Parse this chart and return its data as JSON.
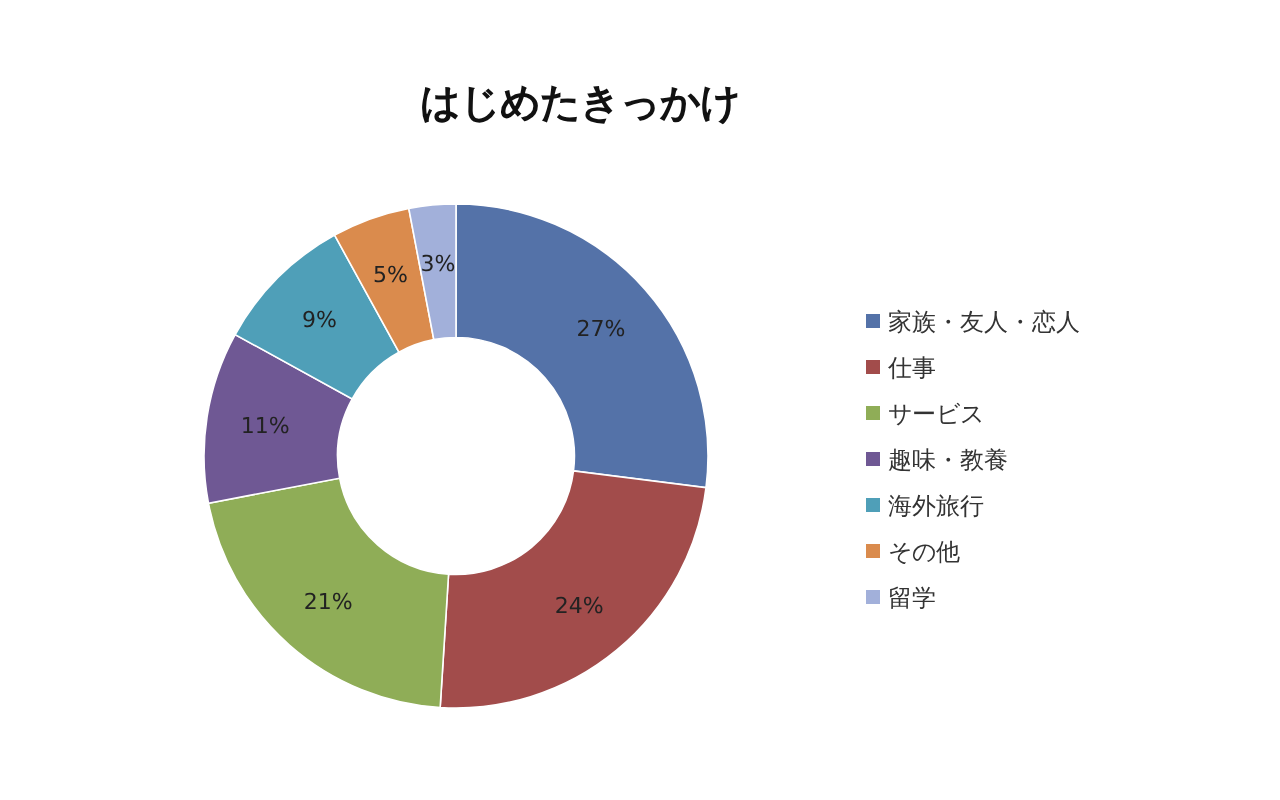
{
  "chart_data": {
    "type": "donut",
    "title": "はじめたきっかけ",
    "categories": [
      "家族・友人・恋人",
      "仕事",
      "サービス",
      "趣味・教養",
      "海外旅行",
      "その他",
      "留学"
    ],
    "values": [
      27,
      24,
      21,
      11,
      9,
      5,
      3
    ],
    "colors": [
      "#5472a8",
      "#a24c4b",
      "#8fad57",
      "#6f5894",
      "#4f9fb8",
      "#da8b4d",
      "#a2b0da"
    ],
    "value_labels": [
      "27%",
      "24%",
      "21%",
      "11%",
      "9%",
      "5%",
      "3%"
    ],
    "legend": "right"
  }
}
